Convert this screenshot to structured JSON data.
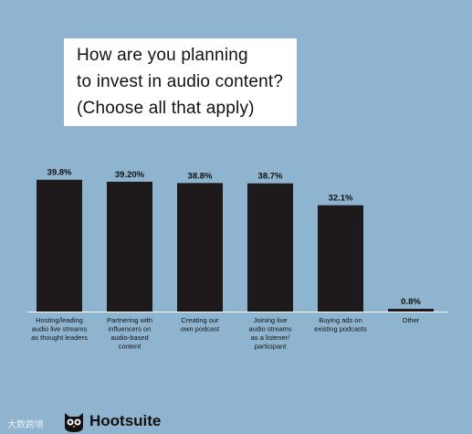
{
  "title_lines": [
    "How are you planning",
    "to invest in audio content?",
    "(Choose all that apply)"
  ],
  "footer": {
    "watermark": "大数跨境",
    "brand": "Hootsuite"
  },
  "colors": {
    "background": "#8fb4cf",
    "bar": "#1e1a1b",
    "title_bg": "#ffffff"
  },
  "chart_data": {
    "type": "bar",
    "title": "How are you planning to invest in audio content? (Choose all that apply)",
    "categories": [
      "Hosting/leading audio live streams as thought leaders",
      "Partnering with influencers on audio-based content",
      "Creating our own podcast",
      "Joining live audio streams as a listener/ participant",
      "Buying ads on existing podcasts",
      "Other"
    ],
    "category_lines": [
      [
        "Hosting/leading",
        "audio live streams",
        "as thought leaders"
      ],
      [
        "Partnering with",
        "influencers on",
        "audio-based",
        "content"
      ],
      [
        "Creating our",
        "own podcast"
      ],
      [
        "Joining live",
        "audio streams",
        "as a listener/",
        "participant"
      ],
      [
        "Buying ads on",
        "existing podcasts"
      ],
      [
        "Other"
      ]
    ],
    "values": [
      39.8,
      39.2,
      38.8,
      38.7,
      32.1,
      0.8
    ],
    "value_labels": [
      "39.8%",
      "39.20%",
      "38.8%",
      "38.7%",
      "32.1%",
      "0.8%"
    ],
    "ylim": [
      0,
      40
    ],
    "grid": false,
    "legend": "none"
  }
}
